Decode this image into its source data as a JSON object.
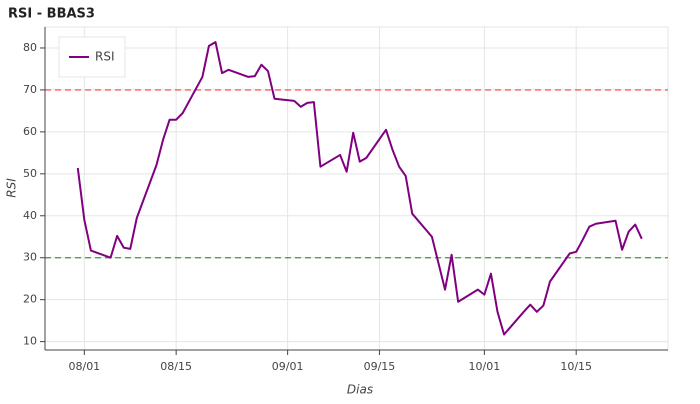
{
  "chart_data": {
    "type": "line",
    "title": "RSI - BBAS3",
    "xlabel": "Dias",
    "ylabel": "RSI",
    "x": [
      "07/31",
      "08/01",
      "08/02",
      "08/05",
      "08/06",
      "08/07",
      "08/08",
      "08/09",
      "08/12",
      "08/13",
      "08/14",
      "08/15",
      "08/16",
      "08/19",
      "08/20",
      "08/21",
      "08/22",
      "08/23",
      "08/26",
      "08/27",
      "08/28",
      "08/29",
      "08/30",
      "09/02",
      "09/03",
      "09/04",
      "09/05",
      "09/06",
      "09/09",
      "09/10",
      "09/11",
      "09/12",
      "09/13",
      "09/16",
      "09/17",
      "09/18",
      "09/19",
      "09/20",
      "09/23",
      "09/25",
      "09/26",
      "09/27",
      "09/30",
      "10/01",
      "10/02",
      "10/03",
      "10/04",
      "10/07",
      "10/08",
      "10/09",
      "10/10",
      "10/11",
      "10/14",
      "10/15",
      "10/16",
      "10/17",
      "10/18",
      "10/21",
      "10/22",
      "10/23",
      "10/24",
      "10/25"
    ],
    "series": [
      {
        "name": "RSI",
        "color": "#800080",
        "values": [
          51.4,
          39,
          31.7,
          30,
          35.2,
          32.4,
          32.1,
          39.5,
          52.1,
          58.1,
          62.9,
          62.9,
          64.5,
          73.1,
          80.5,
          81.4,
          74,
          74.8,
          73.1,
          73.3,
          76,
          74.5,
          67.9,
          67.4,
          66,
          66.9,
          67.1,
          51.7,
          54.5,
          50.5,
          59.8,
          52.9,
          53.8,
          60.5,
          55.7,
          51.7,
          49.5,
          40.5,
          35,
          22.4,
          30.7,
          19.5,
          22.4,
          21.2,
          26.2,
          17.1,
          11.7,
          17.1,
          18.8,
          17.1,
          18.6,
          24.3,
          31,
          31.4,
          34.3,
          37.4,
          38.1,
          38.8,
          31.9,
          36.2,
          37.9,
          34.5
        ]
      }
    ],
    "hlines": [
      {
        "value": 70,
        "color": "#ff0000"
      },
      {
        "value": 30,
        "color": "#008000"
      }
    ],
    "xlim": [
      "07/26",
      "10/29"
    ],
    "xticks": [
      "08/01",
      "08/15",
      "09/01",
      "09/15",
      "10/01",
      "10/15"
    ],
    "ylim": [
      8,
      85
    ],
    "yticks": [
      10,
      20,
      30,
      40,
      50,
      60,
      70,
      80
    ],
    "grid": true,
    "legend": "top-left"
  }
}
